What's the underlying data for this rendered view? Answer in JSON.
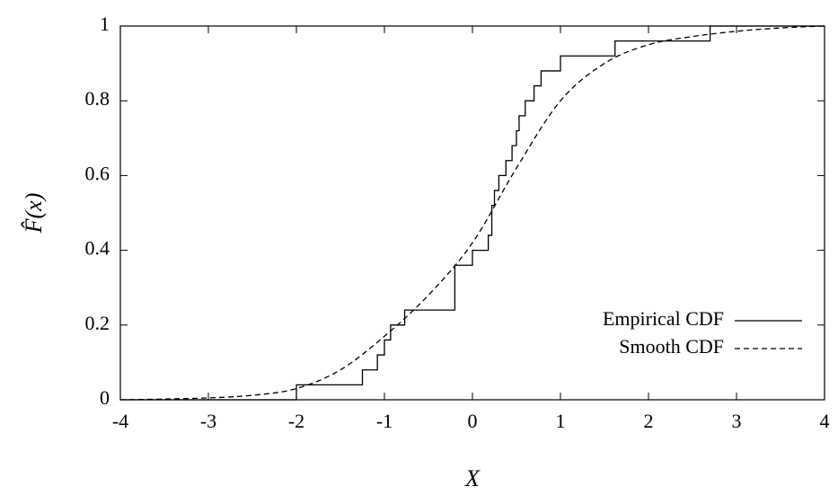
{
  "chart_data": {
    "type": "line",
    "step": "post",
    "xlabel": "X",
    "ylabel": "F̂(x)",
    "xlim": [
      -4,
      4
    ],
    "ylim": [
      0,
      1
    ],
    "xticks": [
      -4,
      -3,
      -2,
      -1,
      0,
      1,
      2,
      3,
      4
    ],
    "yticks": [
      0,
      0.2,
      0.4,
      0.6,
      0.8,
      1
    ],
    "legend": "lower right",
    "series": [
      {
        "name": "Empirical CDF",
        "color": "#000000",
        "dash": false,
        "step": true,
        "x": [
          -4,
          -2,
          -1.25,
          -1.08,
          -1,
          -0.93,
          -0.77,
          -0.2,
          0,
          0.18,
          0.22,
          0.25,
          0.3,
          0.38,
          0.45,
          0.5,
          0.53,
          0.6,
          0.7,
          0.78,
          1,
          1.62,
          2.7,
          4
        ],
        "values": [
          0,
          0.04,
          0.08,
          0.12,
          0.16,
          0.2,
          0.24,
          0.36,
          0.4,
          0.44,
          0.52,
          0.56,
          0.6,
          0.64,
          0.68,
          0.72,
          0.76,
          0.8,
          0.84,
          0.88,
          0.92,
          0.96,
          1,
          1
        ]
      },
      {
        "name": "Smooth CDF",
        "color": "#000000",
        "dash": true,
        "step": false,
        "x": [
          -4,
          -3.5,
          -3,
          -2.5,
          -2,
          -1.5,
          -1,
          -0.5,
          0,
          0.5,
          1,
          1.5,
          2,
          2.5,
          3,
          3.5,
          4
        ],
        "values": [
          0,
          0.002,
          0.005,
          0.012,
          0.03,
          0.08,
          0.17,
          0.28,
          0.42,
          0.62,
          0.8,
          0.9,
          0.95,
          0.972,
          0.986,
          0.995,
          1
        ]
      }
    ]
  }
}
